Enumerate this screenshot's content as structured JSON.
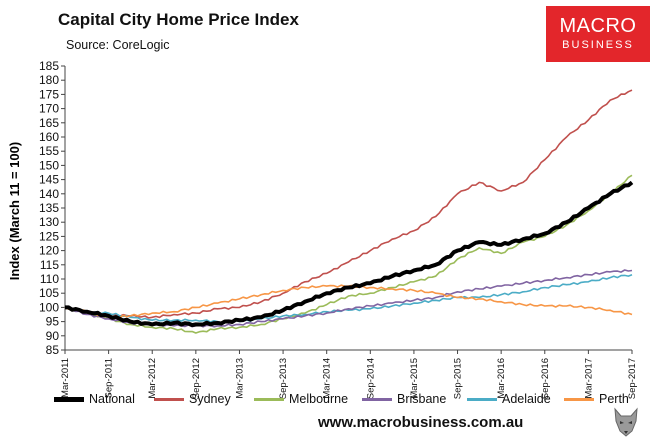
{
  "title": "Capital City Home Price Index",
  "subtitle": "Source: CoreLogic",
  "logo": {
    "line1": "MACRO",
    "line2": "BUSINESS"
  },
  "website": "www.macrobusiness.com.au",
  "chart_data": {
    "type": "line",
    "ylabel": "Index (March 11 = 100)",
    "xlabel": "",
    "ylim": [
      85,
      185
    ],
    "yticks": [
      85,
      90,
      95,
      100,
      105,
      110,
      115,
      120,
      125,
      130,
      135,
      140,
      145,
      150,
      155,
      160,
      165,
      170,
      175,
      180,
      185
    ],
    "xticks": [
      "Mar-2011",
      "Sep-2011",
      "Mar-2012",
      "Sep-2012",
      "Mar-2013",
      "Sep-2013",
      "Mar-2014",
      "Sep-2014",
      "Mar-2015",
      "Sep-2015",
      "Mar-2016",
      "Sep-2016",
      "Mar-2017",
      "Sep-2017"
    ],
    "grid": false,
    "legend": "bottom",
    "x_dates": [
      "Mar-2011",
      "Jun-2011",
      "Sep-2011",
      "Dec-2011",
      "Mar-2012",
      "Jun-2012",
      "Sep-2012",
      "Dec-2012",
      "Mar-2013",
      "Jun-2013",
      "Sep-2013",
      "Dec-2013",
      "Mar-2014",
      "Jun-2014",
      "Sep-2014",
      "Dec-2014",
      "Mar-2015",
      "Jun-2015",
      "Sep-2015",
      "Dec-2015",
      "Mar-2016",
      "Jun-2016",
      "Sep-2016",
      "Dec-2016",
      "Mar-2017",
      "Jun-2017",
      "Sep-2017"
    ],
    "series": [
      {
        "name": "National",
        "color": "#000000",
        "width": 4,
        "values": [
          100,
          98.5,
          97,
          95,
          94,
          94.5,
          94,
          94.5,
          95.5,
          96.5,
          99,
          102,
          105,
          107,
          108.5,
          111,
          113,
          115,
          120,
          123,
          122,
          124,
          126,
          130,
          135,
          140,
          144
        ]
      },
      {
        "name": "Sydney",
        "color": "#c0504d",
        "width": 1.6,
        "values": [
          100,
          98.5,
          97.5,
          97,
          96.5,
          97.5,
          98,
          99.5,
          100,
          102,
          105,
          109,
          112,
          116,
          120,
          124,
          127,
          132,
          140,
          144,
          141,
          144,
          152,
          160,
          166,
          173,
          176.5
        ]
      },
      {
        "name": "Melbourne",
        "color": "#9bbb59",
        "width": 1.6,
        "values": [
          100,
          98,
          96,
          94,
          93,
          92.5,
          91,
          92.5,
          93,
          94,
          96,
          98,
          101,
          104,
          105,
          107,
          109,
          111,
          117,
          121,
          119,
          123,
          125,
          129,
          134,
          140,
          146.5
        ]
      },
      {
        "name": "Brisbane",
        "color": "#8064a2",
        "width": 1.6,
        "values": [
          100,
          97.5,
          96,
          94.5,
          94,
          93.5,
          93.5,
          93.5,
          94,
          95,
          96,
          97,
          98,
          99.5,
          100.5,
          101.5,
          102.5,
          103.5,
          105.5,
          106.5,
          107.5,
          108.5,
          109.5,
          110.5,
          111.5,
          112.5,
          113
        ]
      },
      {
        "name": "Adelaide",
        "color": "#4bacc6",
        "width": 1.6,
        "values": [
          100,
          98.5,
          98,
          96.5,
          95.5,
          95.5,
          95.5,
          95,
          95,
          96,
          97,
          97.5,
          98.5,
          99,
          99.5,
          100.5,
          101.5,
          102.5,
          103.5,
          103.5,
          104.5,
          105.5,
          107,
          108,
          109,
          110.5,
          111.5
        ]
      },
      {
        "name": "Perth",
        "color": "#f79646",
        "width": 1.6,
        "values": [
          100,
          98.5,
          96.5,
          97,
          98,
          98.5,
          100,
          101.5,
          103,
          104.5,
          106,
          107,
          107.5,
          107.5,
          107,
          106.5,
          106,
          105,
          103.5,
          103,
          102,
          101,
          100.5,
          100.5,
          100,
          99,
          97.5
        ]
      }
    ]
  }
}
